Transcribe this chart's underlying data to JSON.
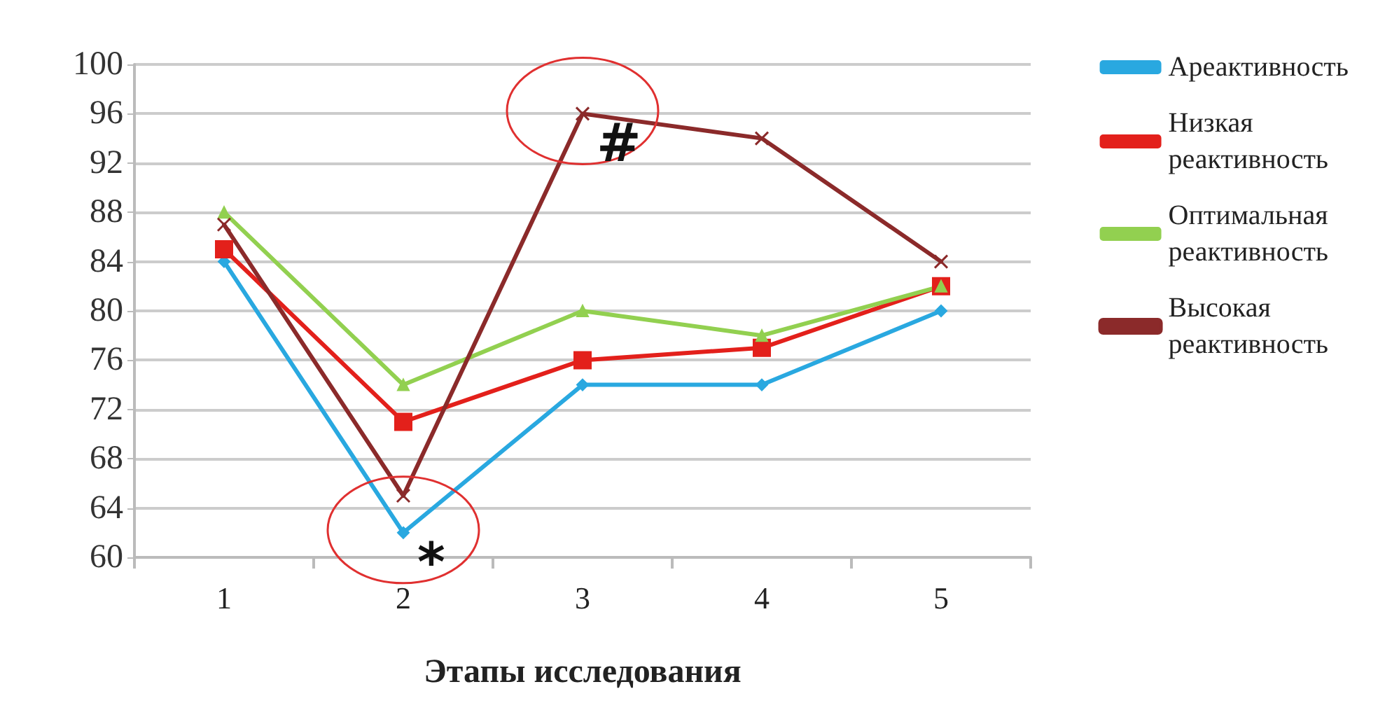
{
  "chart_data": {
    "type": "line",
    "xlabel": "Этапы исследования",
    "categories": [
      "1",
      "2",
      "3",
      "4",
      "5"
    ],
    "series": [
      {
        "name": "Ареактивность",
        "color": "#29a8e0",
        "marker": "diamond",
        "values": [
          84,
          62,
          74,
          74,
          80
        ]
      },
      {
        "name": "Низкая реактивность",
        "color": "#e3201b",
        "marker": "square",
        "values": [
          85,
          71,
          76,
          77,
          82
        ]
      },
      {
        "name": "Оптимальная реактивность",
        "color": "#92d050",
        "marker": "triangle",
        "values": [
          88,
          74,
          80,
          78,
          82
        ]
      },
      {
        "name": "Высокая реактивность",
        "color": "#8b2a2a",
        "marker": "cross",
        "values": [
          87,
          65,
          96,
          94,
          84
        ]
      }
    ],
    "ylim": [
      60,
      100
    ],
    "yticks": [
      60,
      64,
      68,
      72,
      76,
      80,
      84,
      88,
      92,
      96,
      100
    ],
    "grid": "y",
    "legend": "right",
    "annotations": [
      {
        "text": "*",
        "x": "2",
        "y": 62
      },
      {
        "text": "#",
        "x": "3",
        "y": 96
      }
    ]
  }
}
